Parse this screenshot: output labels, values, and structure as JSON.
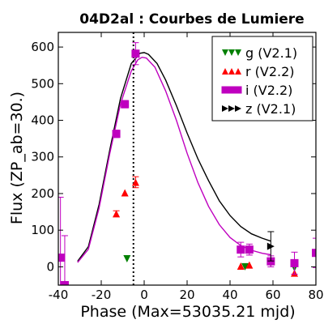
{
  "chart_data": {
    "type": "scatter",
    "title": "04D2al : Courbes de Lumiere",
    "xlabel": "Phase (Max=53035.21 mjd)",
    "ylabel": "Flux (ZP_ab=30.)",
    "xlim": [
      -40,
      80
    ],
    "ylim": [
      -50,
      640
    ],
    "xticks": [
      -40,
      -20,
      0,
      20,
      40,
      60,
      80
    ],
    "yticks": [
      0,
      100,
      200,
      300,
      400,
      500,
      600
    ],
    "max_phase_marker": -5,
    "legend_position": "top-right",
    "series": [
      {
        "name": "g (V2.1)",
        "color": "#008000",
        "marker": "triangle-down",
        "points": [
          {
            "x": -8,
            "y": 22,
            "err": 0
          },
          {
            "x": 47,
            "y": 0,
            "err": 0
          },
          {
            "x": 59,
            "y": 10,
            "err": 0
          },
          {
            "x": 70,
            "y": -3,
            "err": 0
          }
        ]
      },
      {
        "name": "r (V2.2)",
        "color": "#ff0000",
        "marker": "triangle-up",
        "points": [
          {
            "x": -13,
            "y": 145,
            "err": 8
          },
          {
            "x": -9,
            "y": 202,
            "err": 0
          },
          {
            "x": -4,
            "y": 231,
            "err": 15
          },
          {
            "x": 45,
            "y": 2,
            "err": 0
          },
          {
            "x": 49,
            "y": 5,
            "err": 0
          },
          {
            "x": 59,
            "y": 15,
            "err": 0
          },
          {
            "x": 70,
            "y": -17,
            "err": 0
          }
        ]
      },
      {
        "name": "i (V2.2)",
        "color": "#bf00bf",
        "marker": "square",
        "points": [
          {
            "x": -39,
            "y": 25,
            "err": 165
          },
          {
            "x": -37,
            "y": -50,
            "err": 135
          },
          {
            "x": -13,
            "y": 363,
            "err": 10
          },
          {
            "x": -9,
            "y": 444,
            "err": 10
          },
          {
            "x": -4,
            "y": 582,
            "err": 30
          },
          {
            "x": 45,
            "y": 47,
            "err": 20
          },
          {
            "x": 49,
            "y": 47,
            "err": 15
          },
          {
            "x": 59,
            "y": 15,
            "err": 15
          },
          {
            "x": 70,
            "y": 10,
            "err": 30
          },
          {
            "x": 80,
            "y": 38,
            "err": 40
          }
        ]
      },
      {
        "name": "z (V2.1)",
        "color": "#000000",
        "marker": "triangle-right",
        "points": [
          {
            "x": 59,
            "y": 56,
            "err": 40
          }
        ]
      }
    ],
    "fits": [
      {
        "band": "z",
        "color": "#000000",
        "x": [
          -31,
          -26,
          -21,
          -16,
          -11,
          -6,
          -2,
          0,
          2,
          6,
          10,
          15,
          20,
          25,
          30,
          35,
          40,
          45,
          50,
          55,
          59
        ],
        "y": [
          15,
          55,
          170,
          320,
          460,
          555,
          583,
          585,
          580,
          555,
          510,
          440,
          365,
          295,
          235,
          180,
          140,
          110,
          90,
          78,
          70
        ]
      },
      {
        "band": "i",
        "color": "#bf00bf",
        "x": [
          -31,
          -26,
          -21,
          -16,
          -11,
          -6,
          -3,
          -1,
          1,
          5,
          10,
          15,
          20,
          25,
          30,
          35,
          40,
          45,
          50,
          55,
          59
        ],
        "y": [
          12,
          48,
          160,
          310,
          445,
          535,
          565,
          572,
          570,
          545,
          480,
          400,
          310,
          230,
          165,
          115,
          80,
          58,
          45,
          37,
          33
        ]
      }
    ]
  }
}
